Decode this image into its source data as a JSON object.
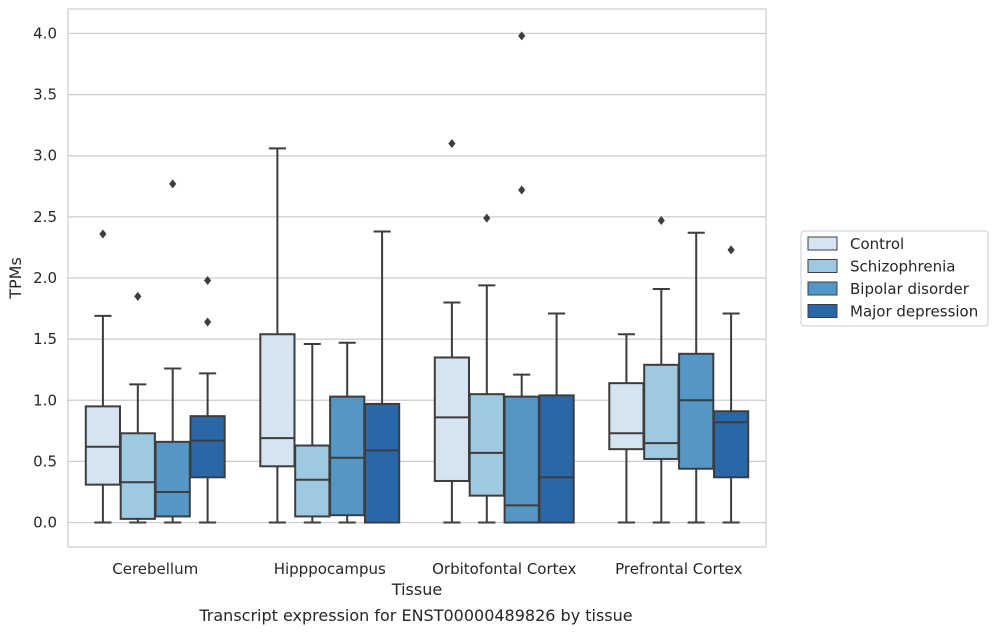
{
  "caption": "Transcript expression for ENST00000489826 by tissue",
  "chart_data": {
    "type": "box",
    "xlabel": "Tissue",
    "ylabel": "TPMs",
    "ylim": [
      -0.2,
      4.2
    ],
    "yticks": [
      "0.0",
      "0.5",
      "1.0",
      "1.5",
      "2.0",
      "2.5",
      "3.0",
      "3.5",
      "4.0"
    ],
    "grid": "horizontal",
    "legend_placement": "right",
    "categories": [
      "Cerebellum",
      "Hipppocampus",
      "Orbitofontal Cortex",
      "Prefrontal Cortex"
    ],
    "colors": {
      "Control": "#d6e3f1",
      "Schizophrenia": "#9ec9e0",
      "Bipolar disorder": "#5497c7",
      "Major depression": "#2a67a8"
    },
    "series": [
      {
        "name": "Control",
        "boxes": [
          {
            "whislo": 0.0,
            "q1": 0.31,
            "med": 0.62,
            "q3": 0.95,
            "whishi": 1.69,
            "fliers": [
              2.36
            ]
          },
          {
            "whislo": 0.0,
            "q1": 0.46,
            "med": 0.69,
            "q3": 1.54,
            "whishi": 3.06,
            "fliers": []
          },
          {
            "whislo": 0.0,
            "q1": 0.34,
            "med": 0.86,
            "q3": 1.35,
            "whishi": 1.8,
            "fliers": [
              3.1
            ]
          },
          {
            "whislo": 0.0,
            "q1": 0.6,
            "med": 0.73,
            "q3": 1.14,
            "whishi": 1.54,
            "fliers": []
          }
        ]
      },
      {
        "name": "Schizophrenia",
        "boxes": [
          {
            "whislo": 0.0,
            "q1": 0.03,
            "med": 0.33,
            "q3": 0.73,
            "whishi": 1.13,
            "fliers": [
              1.85
            ]
          },
          {
            "whislo": 0.0,
            "q1": 0.05,
            "med": 0.35,
            "q3": 0.63,
            "whishi": 1.46,
            "fliers": []
          },
          {
            "whislo": 0.0,
            "q1": 0.22,
            "med": 0.57,
            "q3": 1.05,
            "whishi": 1.94,
            "fliers": [
              2.49
            ]
          },
          {
            "whislo": 0.0,
            "q1": 0.52,
            "med": 0.65,
            "q3": 1.29,
            "whishi": 1.91,
            "fliers": [
              2.47
            ]
          }
        ]
      },
      {
        "name": "Bipolar disorder",
        "boxes": [
          {
            "whislo": 0.0,
            "q1": 0.05,
            "med": 0.25,
            "q3": 0.66,
            "whishi": 1.26,
            "fliers": [
              2.77
            ]
          },
          {
            "whislo": 0.0,
            "q1": 0.06,
            "med": 0.53,
            "q3": 1.03,
            "whishi": 1.47,
            "fliers": []
          },
          {
            "whislo": 0.0,
            "q1": 0.0,
            "med": 0.14,
            "q3": 1.03,
            "whishi": 1.21,
            "fliers": [
              2.72,
              3.98
            ]
          },
          {
            "whislo": 0.0,
            "q1": 0.44,
            "med": 1.0,
            "q3": 1.38,
            "whishi": 2.37,
            "fliers": []
          }
        ]
      },
      {
        "name": "Major depression",
        "boxes": [
          {
            "whislo": 0.0,
            "q1": 0.37,
            "med": 0.67,
            "q3": 0.87,
            "whishi": 1.22,
            "fliers": [
              1.64,
              1.98
            ]
          },
          {
            "whislo": 0.0,
            "q1": 0.0,
            "med": 0.59,
            "q3": 0.97,
            "whishi": 2.38,
            "fliers": []
          },
          {
            "whislo": 0.0,
            "q1": 0.0,
            "med": 0.37,
            "q3": 1.04,
            "whishi": 1.71,
            "fliers": []
          },
          {
            "whislo": 0.0,
            "q1": 0.37,
            "med": 0.82,
            "q3": 0.91,
            "whishi": 1.71,
            "fliers": [
              2.23
            ]
          }
        ]
      }
    ]
  }
}
